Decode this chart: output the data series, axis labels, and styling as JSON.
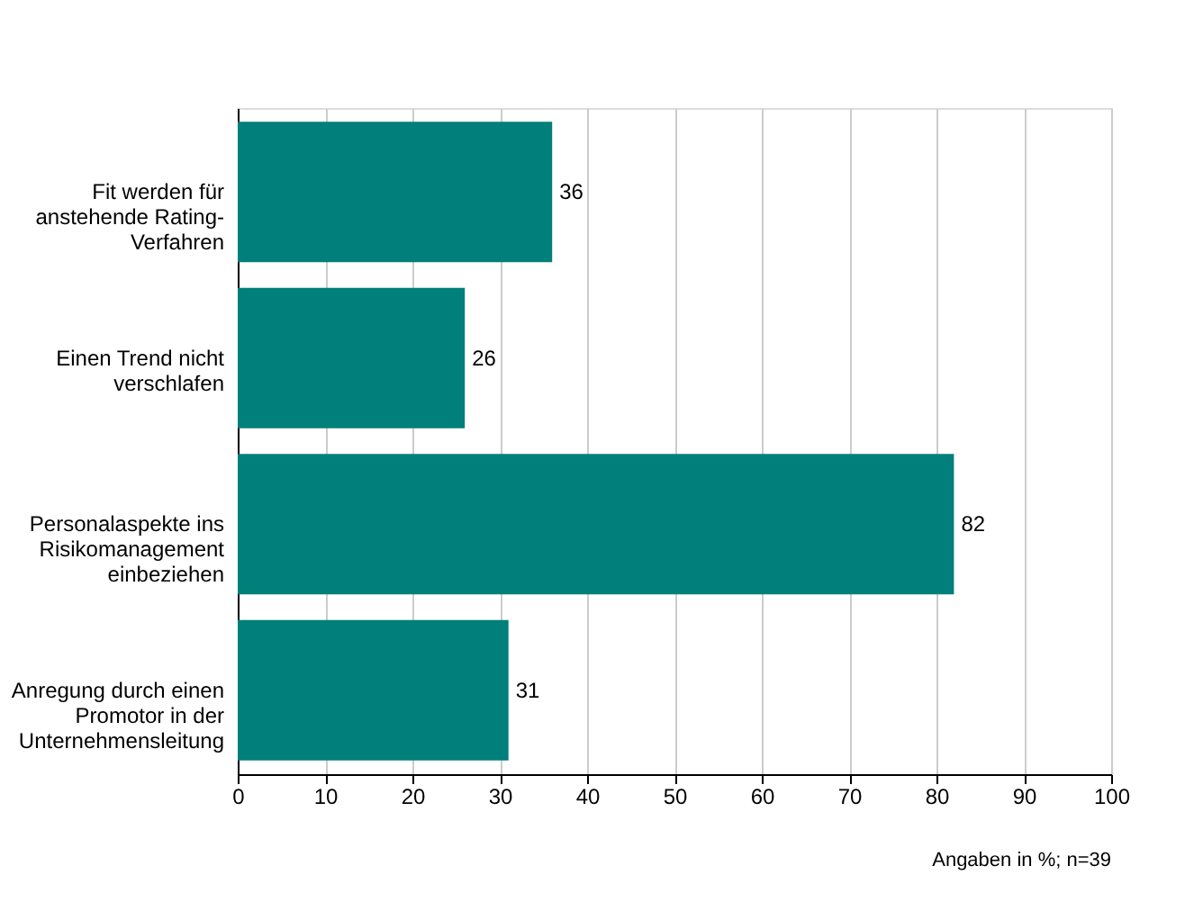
{
  "chart_data": {
    "type": "bar",
    "orientation": "horizontal",
    "categories": [
      "Fit werden für anstehende Rating-Verfahren",
      "Einen Trend nicht verschlafen",
      "Personalaspekte ins Risikomanagement einbeziehen",
      "Anregung durch einen Promotor in der Unternehmensleitung"
    ],
    "values": [
      36,
      26,
      82,
      31
    ],
    "color": "#007f7b",
    "data_labels": true,
    "xlim": [
      0,
      100
    ],
    "xticks": [
      0,
      10,
      20,
      30,
      40,
      50,
      60,
      70,
      80,
      90,
      100
    ],
    "grid": "x",
    "annotations": [
      "Angaben in %; n=39"
    ]
  }
}
